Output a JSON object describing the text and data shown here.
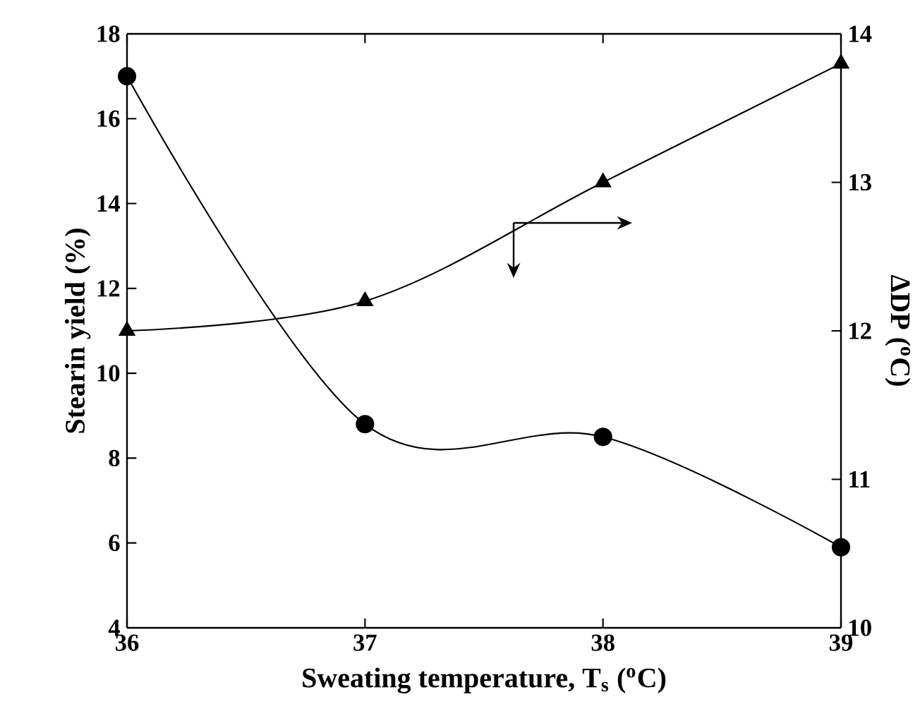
{
  "chart_data": {
    "type": "line",
    "xlabel": "Sweating temperature, T$_{s}$ ($^{o}$C)",
    "ylabel": "Stearin yield (%)",
    "y2label": "ΔDP ($^{o}$C)",
    "x": [
      36,
      37,
      38,
      39
    ],
    "series": [
      {
        "color": "#000000",
        "marker": "circle",
        "values": [
          17.0,
          8.8,
          8.5,
          5.9
        ]
      },
      {
        "color": "#000000",
        "marker": "triangle",
        "axis": "y2",
        "values": [
          12.0,
          12.2,
          13.0,
          13.8
        ]
      }
    ],
    "xlim": [
      36,
      39
    ],
    "xticks": [
      36,
      37,
      38,
      39
    ],
    "ylim": [
      4,
      18
    ],
    "yticks": [
      4,
      6,
      8,
      10,
      12,
      14,
      16,
      18
    ],
    "y2lim": [
      10,
      14
    ],
    "y2ticks": [
      10,
      11,
      12,
      13,
      14
    ]
  }
}
